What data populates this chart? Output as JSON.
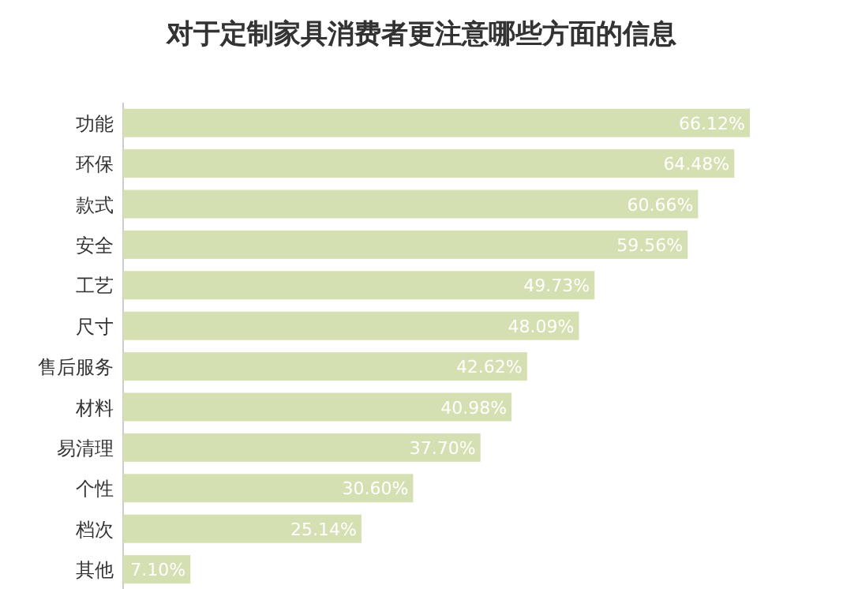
{
  "chart_data": {
    "type": "bar",
    "orientation": "horizontal",
    "title": "对于定制家具消费者更注意哪些方面的信息",
    "categories": [
      "功能",
      "环保",
      "款式",
      "安全",
      "工艺",
      "尺寸",
      "售后服务",
      "材料",
      "易清理",
      "个性",
      "档次",
      "其他"
    ],
    "values": [
      66.12,
      64.48,
      60.66,
      59.56,
      49.73,
      48.09,
      42.62,
      40.98,
      37.7,
      30.6,
      25.14,
      7.1
    ],
    "value_labels": [
      "66.12%",
      "64.48%",
      "60.66%",
      "59.56%",
      "49.73%",
      "48.09%",
      "42.62%",
      "40.98%",
      "37.70%",
      "30.60%",
      "25.14%",
      "7.10%"
    ],
    "color": "#d4e0b2"
  }
}
